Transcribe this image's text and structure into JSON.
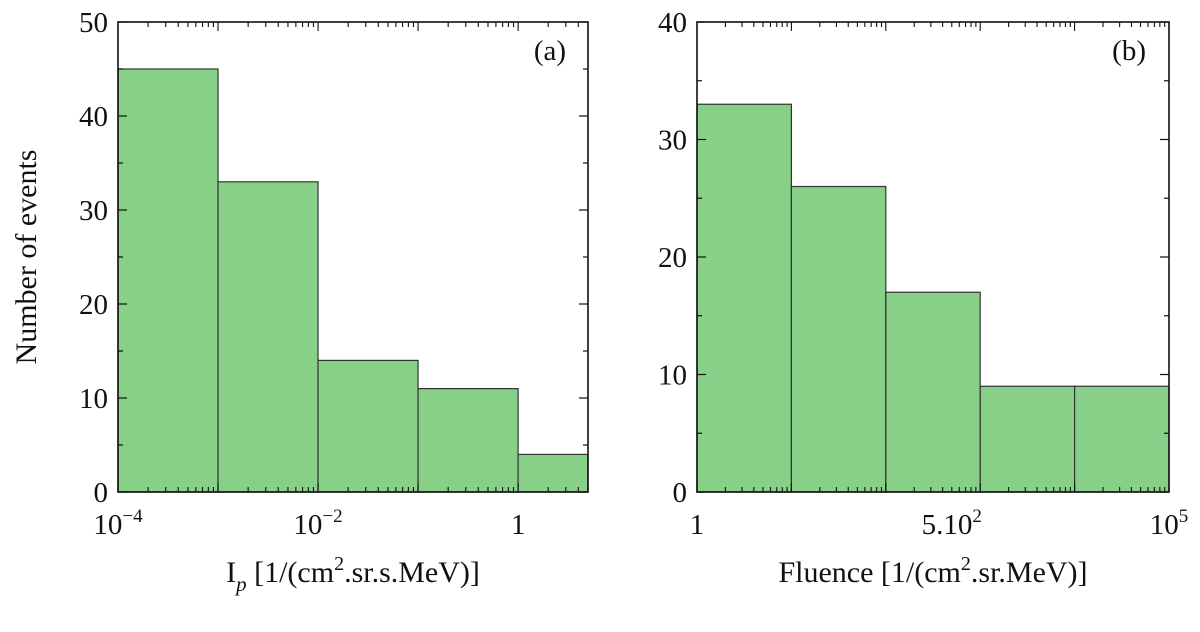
{
  "colors": {
    "bar_fill": "#88cf88",
    "bar_stroke": "#333333",
    "axis": "#111111"
  },
  "chart_data": [
    {
      "type": "bar",
      "panel_label": "(a)",
      "xlabel": "I",
      "xlabel_subscript": "p",
      "xlabel_units_pre": " [1/(cm",
      "xlabel_units_sup": "2",
      "xlabel_units_post": ".sr.s.MeV)]",
      "ylabel": "Number of events",
      "x_scale": "log",
      "xlim": [
        0.0001,
        5
      ],
      "ylim": [
        0,
        50
      ],
      "y_ticks": [
        {
          "value": 0,
          "label": "0"
        },
        {
          "value": 10,
          "label": "10"
        },
        {
          "value": 20,
          "label": "20"
        },
        {
          "value": 30,
          "label": "30"
        },
        {
          "value": 40,
          "label": "40"
        },
        {
          "value": 50,
          "label": "50"
        }
      ],
      "x_ticks": [
        {
          "value": 0.0001,
          "base": "10",
          "exp": "−4"
        },
        {
          "value": 0.01,
          "base": "10",
          "exp": "−2"
        },
        {
          "value": 1,
          "base": "1",
          "exp": ""
        }
      ],
      "bins": [
        {
          "x0": 0.0001,
          "x1": 0.001,
          "value": 45
        },
        {
          "x0": 0.001,
          "x1": 0.01,
          "value": 33
        },
        {
          "x0": 0.01,
          "x1": 0.1,
          "value": 14
        },
        {
          "x0": 0.1,
          "x1": 1,
          "value": 11
        },
        {
          "x0": 1,
          "x1": 5,
          "value": 4
        }
      ]
    },
    {
      "type": "bar",
      "panel_label": "(b)",
      "xlabel": "Fluence [1/(cm",
      "xlabel_units_sup": "2",
      "xlabel_units_post": ".sr.MeV)]",
      "ylabel": "",
      "x_scale": "log",
      "xlim": [
        1,
        100000
      ],
      "ylim": [
        0,
        40
      ],
      "y_ticks": [
        {
          "value": 0,
          "label": "0"
        },
        {
          "value": 10,
          "label": "10"
        },
        {
          "value": 20,
          "label": "20"
        },
        {
          "value": 30,
          "label": "30"
        },
        {
          "value": 40,
          "label": "40"
        }
      ],
      "x_ticks": [
        {
          "value": 1,
          "base": "1",
          "exp": ""
        },
        {
          "value": 500,
          "base": "5.10",
          "exp": "2"
        },
        {
          "value": 100000,
          "base": "10",
          "exp": "5"
        }
      ],
      "bins": [
        {
          "x0": 1,
          "x1": 10,
          "value": 33
        },
        {
          "x0": 10,
          "x1": 100,
          "value": 26
        },
        {
          "x0": 100,
          "x1": 1000,
          "value": 17
        },
        {
          "x0": 1000,
          "x1": 10000,
          "value": 9
        },
        {
          "x0": 10000,
          "x1": 100000,
          "value": 9
        }
      ]
    }
  ]
}
